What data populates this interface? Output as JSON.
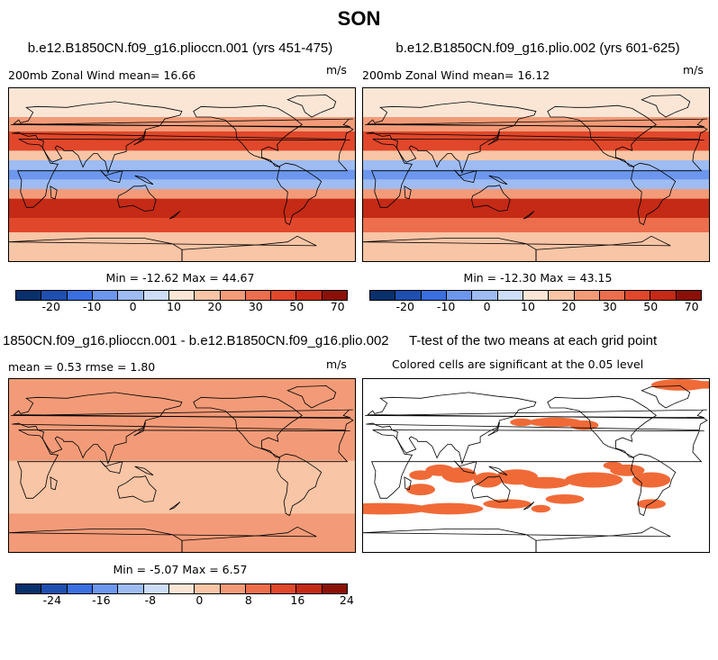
{
  "figure_title": "SON",
  "colors": {
    "palette_a": [
      "#08306b",
      "#1f4fb0",
      "#3a6fe0",
      "#6d97ee",
      "#9ebcf2",
      "#cdddf7",
      "#fbe6d6",
      "#f8c5a6",
      "#f39b78",
      "#ec6e4c",
      "#e1472a",
      "#c42a15",
      "#8b1008"
    ],
    "palette_b": [
      "#08306b",
      "#1f4fb0",
      "#3a6fe0",
      "#6d97ee",
      "#9ebcf2",
      "#cdddf7",
      "#fbe6d6",
      "#f8c5a6",
      "#f39b78",
      "#ec6e4c",
      "#e1472a",
      "#c42a15",
      "#8b1008"
    ],
    "sig_fill": "#f06a37",
    "coast": "#000000"
  },
  "panels": [
    {
      "title": "b.e12.B1850CN.f09_g16.plioccn.001 (yrs 451-475)",
      "left_label": "200mb Zonal Wind  mean=  16.66",
      "units": "m/s",
      "stats": "Min = -12.62 Max =  44.67"
    },
    {
      "title": "b.e12.B1850CN.f09_g16.plio.002 (yrs 601-625)",
      "left_label": "200mb Zonal Wind  mean=  16.12",
      "units": "m/s",
      "stats": "Min = -12.30 Max =  43.15"
    },
    {
      "title": "1850CN.f09_g16.plioccn.001 - b.e12.B1850CN.f09_g16.plio.002",
      "left_label": "mean =   0.53    rmse =   1.80",
      "units": "m/s",
      "stats": "Min =  -5.07 Max =   6.57"
    },
    {
      "title": "T-test of the two means at each grid point",
      "left_label": "Colored cells are significant at the 0.05 level"
    }
  ],
  "colorbars": [
    {
      "ticks": [
        "-20",
        "-10",
        "0",
        "10",
        "20",
        "30",
        "50",
        "70"
      ]
    },
    {
      "ticks": [
        "-20",
        "-10",
        "0",
        "10",
        "20",
        "30",
        "50",
        "70"
      ]
    },
    {
      "ticks": [
        "-24",
        "-16",
        "-8",
        "0",
        "8",
        "16",
        "24"
      ]
    }
  ],
  "chart_data": [
    {
      "type": "heatmap",
      "title": "b.e12.B1850CN.f09_g16.plioccn.001 (yrs 451-475)",
      "variable": "200mb Zonal Wind",
      "units": "m/s",
      "mean": 16.66,
      "min": -12.62,
      "max": 44.67,
      "levels": [
        -20,
        -15,
        -10,
        -5,
        0,
        5,
        10,
        15,
        20,
        25,
        30,
        40,
        50,
        60,
        70
      ],
      "lat_bands": [
        {
          "lat": 90,
          "u": 5
        },
        {
          "lat": 60,
          "u": 12
        },
        {
          "lat": 45,
          "u": 22
        },
        {
          "lat": 35,
          "u": 30
        },
        {
          "lat": 25,
          "u": 24
        },
        {
          "lat": 15,
          "u": 2
        },
        {
          "lat": 5,
          "u": -8
        },
        {
          "lat": -5,
          "u": -10
        },
        {
          "lat": -15,
          "u": 6
        },
        {
          "lat": -25,
          "u": 28
        },
        {
          "lat": -35,
          "u": 36
        },
        {
          "lat": -45,
          "u": 30
        },
        {
          "lat": -60,
          "u": 20
        },
        {
          "lat": -90,
          "u": 8
        }
      ]
    },
    {
      "type": "heatmap",
      "title": "b.e12.B1850CN.f09_g16.plio.002 (yrs 601-625)",
      "variable": "200mb Zonal Wind",
      "units": "m/s",
      "mean": 16.12,
      "min": -12.3,
      "max": 43.15,
      "levels": [
        -20,
        -15,
        -10,
        -5,
        0,
        5,
        10,
        15,
        20,
        25,
        30,
        40,
        50,
        60,
        70
      ],
      "lat_bands": [
        {
          "lat": 90,
          "u": 5
        },
        {
          "lat": 60,
          "u": 12
        },
        {
          "lat": 45,
          "u": 22
        },
        {
          "lat": 35,
          "u": 29
        },
        {
          "lat": 25,
          "u": 23
        },
        {
          "lat": 15,
          "u": 2
        },
        {
          "lat": 5,
          "u": -8
        },
        {
          "lat": -5,
          "u": -10
        },
        {
          "lat": -15,
          "u": 6
        },
        {
          "lat": -25,
          "u": 27
        },
        {
          "lat": -35,
          "u": 35
        },
        {
          "lat": -45,
          "u": 29
        },
        {
          "lat": -60,
          "u": 20
        },
        {
          "lat": -90,
          "u": 8
        }
      ]
    },
    {
      "type": "heatmap",
      "title": "1850CN.f09_g16.plioccn.001 - b.e12.B1850CN.f09_g16.plio.002",
      "units": "m/s",
      "mean": 0.53,
      "rmse": 1.8,
      "min": -5.07,
      "max": 6.57,
      "levels": [
        -28,
        -24,
        -20,
        -16,
        -12,
        -8,
        -4,
        0,
        4,
        8,
        12,
        16,
        20,
        24,
        28
      ],
      "lat_bands": [
        {
          "lat": 90,
          "u": 0.5
        },
        {
          "lat": 45,
          "u": 1
        },
        {
          "lat": 25,
          "u": -1
        },
        {
          "lat": 5,
          "u": 1
        },
        {
          "lat": -25,
          "u": -1.5
        },
        {
          "lat": -50,
          "u": 1
        },
        {
          "lat": -90,
          "u": 0.5
        }
      ]
    },
    {
      "type": "heatmap",
      "title": "T-test of the two means at each grid point",
      "significance_level": 0.05,
      "significant_regions": [
        "Arctic north of Greenland",
        "North Pacific mid-latitudes",
        "Tropical Indian Ocean",
        "Southern Ocean south of Africa",
        "Southern Ocean south of Australia",
        "Tropical South Pacific",
        "Southeast Pacific"
      ]
    }
  ]
}
